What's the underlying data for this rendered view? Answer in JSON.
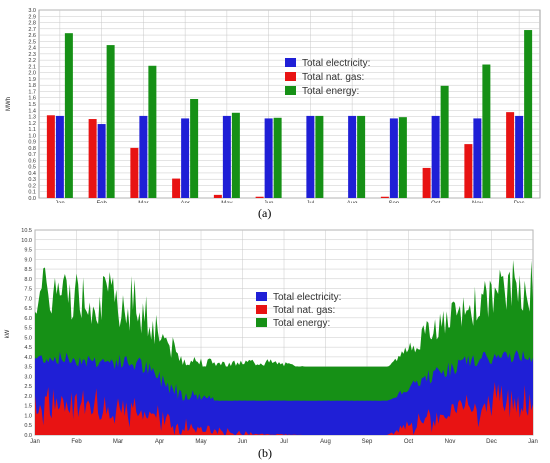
{
  "captions": {
    "a": "(a)",
    "b": "(b)"
  },
  "colors": {
    "electricity": "#1f1fd6",
    "gas": "#e81313",
    "energy": "#169016",
    "grid": "#c8c8c8"
  },
  "chart_data": [
    {
      "type": "bar",
      "ylabel": "MWh",
      "ylim": [
        0,
        3.0
      ],
      "yticks": [
        "0.0",
        "0.1",
        "0.2",
        "0.3",
        "0.4",
        "0.5",
        "0.6",
        "0.7",
        "0.8",
        "0.9",
        "1.0",
        "1.1",
        "1.2",
        "1.3",
        "1.4",
        "1.5",
        "1.6",
        "1.7",
        "1.8",
        "1.9",
        "2.0",
        "2.1",
        "2.2",
        "2.3",
        "2.4",
        "2.5",
        "2.6",
        "2.7",
        "2.8",
        "2.9",
        "3.0"
      ],
      "categories": [
        "Jan",
        "Feb",
        "Mar",
        "Apr",
        "May",
        "Jun",
        "Jul",
        "Aug",
        "Sep",
        "Oct",
        "Nov",
        "Dec"
      ],
      "grid": true,
      "legend": "center-right",
      "series": [
        {
          "name": "Total nat. gas:",
          "key": "gas",
          "values": [
            1.32,
            1.26,
            0.8,
            0.31,
            0.05,
            0.02,
            0,
            0,
            0.02,
            0.48,
            0.86,
            1.37
          ]
        },
        {
          "name": "Total electricity:",
          "key": "electricity",
          "values": [
            1.31,
            1.18,
            1.31,
            1.27,
            1.31,
            1.27,
            1.31,
            1.31,
            1.27,
            1.31,
            1.27,
            1.31
          ]
        },
        {
          "name": "Total energy:",
          "key": "energy",
          "values": [
            2.63,
            2.44,
            2.11,
            1.58,
            1.36,
            1.28,
            1.31,
            1.31,
            1.29,
            1.79,
            2.13,
            2.68
          ]
        }
      ],
      "legend_entries": [
        {
          "name": "Total electricity:",
          "key": "electricity"
        },
        {
          "name": "Total nat. gas:",
          "key": "gas"
        },
        {
          "name": "Total energy:",
          "key": "energy"
        }
      ]
    },
    {
      "type": "area",
      "ylabel": "kW",
      "ylim": [
        0,
        10.5
      ],
      "yticks": [
        "0.0",
        "0.5",
        "1.0",
        "1.5",
        "2.0",
        "2.5",
        "3.0",
        "3.5",
        "4.0",
        "4.5",
        "5.0",
        "5.5",
        "6.0",
        "6.5",
        "7.0",
        "7.5",
        "8.0",
        "8.5",
        "9.0",
        "9.5",
        "10.0",
        "10.5"
      ],
      "xlabels": [
        "Jan",
        "Feb",
        "Mar",
        "Apr",
        "May",
        "Jun",
        "Jul",
        "Aug",
        "Sep",
        "Oct",
        "Nov",
        "Dec",
        "Jan"
      ],
      "grid": true,
      "legend": "center",
      "profile_months": [
        "Jan",
        "Feb",
        "Mar",
        "Apr",
        "May",
        "Jun",
        "Jul",
        "Aug",
        "Sep",
        "Oct",
        "Nov",
        "Dec"
      ],
      "series": [
        {
          "name": "Total electricity:",
          "key": "electricity",
          "avg_values": [
            3.6,
            3.4,
            3.2,
            1.75,
            1.75,
            1.75,
            1.75,
            1.75,
            1.75,
            2.6,
            3.4,
            3.7
          ],
          "peak_values": [
            4.3,
            4.2,
            4.1,
            2.6,
            1.8,
            1.8,
            1.8,
            1.8,
            1.8,
            3.4,
            4.2,
            4.4
          ]
        },
        {
          "name": "Total nat. gas:",
          "key": "gas",
          "avg_values": [
            1.8,
            1.6,
            1.1,
            0.3,
            0.05,
            0,
            0,
            0,
            0,
            0.8,
            1.3,
            2.0
          ],
          "peak_values": [
            2.8,
            2.6,
            2.2,
            1.2,
            0.4,
            0.1,
            0,
            0,
            0,
            1.8,
            2.5,
            3.0
          ]
        },
        {
          "name": "Total energy:",
          "key": "energy",
          "avg_values": [
            6.0,
            5.6,
            5.0,
            3.5,
            3.5,
            3.5,
            3.5,
            3.5,
            3.5,
            4.6,
            5.5,
            6.3
          ],
          "peak_values": [
            8.7,
            8.4,
            8.5,
            4.3,
            3.8,
            4.0,
            3.5,
            3.5,
            3.5,
            6.0,
            7.5,
            9.0
          ]
        }
      ],
      "legend_entries": [
        {
          "name": "Total electricity:",
          "key": "electricity"
        },
        {
          "name": "Total nat. gas:",
          "key": "gas"
        },
        {
          "name": "Total energy:",
          "key": "energy"
        }
      ]
    }
  ]
}
